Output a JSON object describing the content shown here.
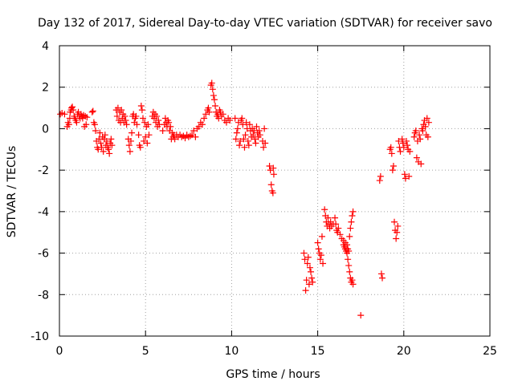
{
  "chart_data": {
    "type": "scatter",
    "title": "Day 132 of 2017, Sidereal Day-to-day VTEC variation (SDTVAR) for receiver savo",
    "xlabel": "GPS time / hours",
    "ylabel": "SDTVAR / TECUs",
    "xlim": [
      0,
      25
    ],
    "ylim": [
      -10,
      4
    ],
    "xticks": [
      "0",
      "5",
      "10",
      "15",
      "20",
      "25"
    ],
    "yticks": [
      "-10",
      "-8",
      "-6",
      "-4",
      "-2",
      "0",
      "2",
      "4"
    ],
    "grid": true,
    "marker": "+",
    "colors": {
      "marker": "#ff0000",
      "axes": "#000000",
      "grid": "#a0a0a0"
    },
    "series": [
      {
        "name": "SDTVAR",
        "points": [
          [
            0.05,
            0.7
          ],
          [
            0.15,
            0.75
          ],
          [
            0.3,
            0.7
          ],
          [
            0.45,
            0.1
          ],
          [
            0.5,
            0.3
          ],
          [
            0.55,
            0.2
          ],
          [
            0.6,
            0.5
          ],
          [
            0.62,
            0.8
          ],
          [
            0.68,
            0.9
          ],
          [
            0.7,
            1.0
          ],
          [
            0.75,
            1.05
          ],
          [
            0.8,
            0.9
          ],
          [
            0.85,
            0.6
          ],
          [
            0.9,
            0.5
          ],
          [
            0.95,
            0.4
          ],
          [
            1.0,
            0.3
          ],
          [
            1.05,
            0.7
          ],
          [
            1.1,
            0.8
          ],
          [
            1.15,
            0.6
          ],
          [
            1.2,
            0.5
          ],
          [
            1.25,
            0.7
          ],
          [
            1.3,
            0.6
          ],
          [
            1.35,
            0.5
          ],
          [
            1.4,
            0.65
          ],
          [
            1.45,
            0.1
          ],
          [
            1.5,
            0.6
          ],
          [
            1.55,
            0.2
          ],
          [
            1.6,
            0.55
          ],
          [
            1.9,
            0.8
          ],
          [
            1.95,
            0.85
          ],
          [
            2.0,
            0.3
          ],
          [
            2.05,
            0.2
          ],
          [
            2.1,
            -0.1
          ],
          [
            2.15,
            -0.6
          ],
          [
            2.2,
            -0.9
          ],
          [
            2.25,
            -1.0
          ],
          [
            2.3,
            -0.5
          ],
          [
            2.35,
            -0.2
          ],
          [
            2.4,
            -0.7
          ],
          [
            2.45,
            -0.9
          ],
          [
            2.5,
            -0.4
          ],
          [
            2.55,
            -1.1
          ],
          [
            2.6,
            -0.5
          ],
          [
            2.65,
            -0.3
          ],
          [
            2.7,
            -0.8
          ],
          [
            2.75,
            -0.6
          ],
          [
            2.8,
            -0.9
          ],
          [
            2.85,
            -1.0
          ],
          [
            2.9,
            -1.2
          ],
          [
            2.95,
            -0.7
          ],
          [
            3.0,
            -0.5
          ],
          [
            3.05,
            -0.8
          ],
          [
            3.3,
            0.9
          ],
          [
            3.35,
            0.6
          ],
          [
            3.4,
            1.0
          ],
          [
            3.45,
            0.4
          ],
          [
            3.5,
            0.8
          ],
          [
            3.55,
            0.3
          ],
          [
            3.6,
            0.9
          ],
          [
            3.65,
            0.5
          ],
          [
            3.7,
            0.7
          ],
          [
            3.75,
            0.3
          ],
          [
            3.8,
            0.6
          ],
          [
            3.85,
            0.4
          ],
          [
            3.9,
            0.2
          ],
          [
            4.0,
            -0.5
          ],
          [
            4.05,
            -0.8
          ],
          [
            4.1,
            -1.1
          ],
          [
            4.15,
            -0.6
          ],
          [
            4.2,
            -0.2
          ],
          [
            4.25,
            0.6
          ],
          [
            4.3,
            0.7
          ],
          [
            4.35,
            0.3
          ],
          [
            4.4,
            0.5
          ],
          [
            4.45,
            0.6
          ],
          [
            4.5,
            0.2
          ],
          [
            4.6,
            -0.3
          ],
          [
            4.65,
            -0.8
          ],
          [
            4.7,
            -0.9
          ],
          [
            4.75,
            1.1
          ],
          [
            4.8,
            0.9
          ],
          [
            4.85,
            0.5
          ],
          [
            4.9,
            -0.6
          ],
          [
            4.95,
            0.3
          ],
          [
            5.0,
            -0.4
          ],
          [
            5.05,
            0.1
          ],
          [
            5.1,
            -0.7
          ],
          [
            5.15,
            0.2
          ],
          [
            5.2,
            -0.3
          ],
          [
            5.4,
            0.6
          ],
          [
            5.45,
            0.8
          ],
          [
            5.5,
            0.5
          ],
          [
            5.55,
            0.7
          ],
          [
            5.6,
            0.3
          ],
          [
            5.65,
            0.6
          ],
          [
            5.7,
            0.1
          ],
          [
            5.75,
            0.4
          ],
          [
            5.8,
            0.2
          ],
          [
            6.0,
            -0.1
          ],
          [
            6.1,
            0.2
          ],
          [
            6.15,
            0.5
          ],
          [
            6.2,
            0.3
          ],
          [
            6.25,
            0.1
          ],
          [
            6.3,
            0.4
          ],
          [
            6.35,
            0.3
          ],
          [
            6.4,
            -0.1
          ],
          [
            6.45,
            0.1
          ],
          [
            6.5,
            -0.5
          ],
          [
            6.55,
            -0.2
          ],
          [
            6.6,
            -0.4
          ],
          [
            6.65,
            -0.3
          ],
          [
            6.7,
            -0.5
          ],
          [
            6.8,
            -0.3
          ],
          [
            6.9,
            -0.4
          ],
          [
            7.0,
            -0.3
          ],
          [
            7.1,
            -0.4
          ],
          [
            7.2,
            -0.35
          ],
          [
            7.3,
            -0.45
          ],
          [
            7.4,
            -0.3
          ],
          [
            7.5,
            -0.4
          ],
          [
            7.6,
            -0.35
          ],
          [
            7.7,
            -0.3
          ],
          [
            7.8,
            -0.1
          ],
          [
            7.9,
            -0.4
          ],
          [
            8.0,
            0.0
          ],
          [
            8.1,
            0.1
          ],
          [
            8.2,
            0.3
          ],
          [
            8.3,
            0.2
          ],
          [
            8.4,
            0.5
          ],
          [
            8.5,
            0.7
          ],
          [
            8.6,
            0.9
          ],
          [
            8.65,
            1.0
          ],
          [
            8.7,
            0.8
          ],
          [
            8.8,
            2.1
          ],
          [
            8.85,
            2.2
          ],
          [
            8.9,
            1.9
          ],
          [
            8.95,
            1.6
          ],
          [
            9.0,
            1.4
          ],
          [
            9.05,
            1.1
          ],
          [
            9.1,
            0.8
          ],
          [
            9.15,
            0.6
          ],
          [
            9.2,
            0.7
          ],
          [
            9.25,
            0.5
          ],
          [
            9.3,
            0.9
          ],
          [
            9.35,
            0.8
          ],
          [
            9.4,
            0.6
          ],
          [
            9.5,
            0.7
          ],
          [
            9.6,
            0.4
          ],
          [
            9.7,
            0.3
          ],
          [
            9.8,
            0.5
          ],
          [
            9.9,
            0.4
          ],
          [
            10.2,
            0.5
          ],
          [
            10.25,
            -0.5
          ],
          [
            10.3,
            -0.2
          ],
          [
            10.35,
            0.0
          ],
          [
            10.4,
            0.3
          ],
          [
            10.45,
            -0.8
          ],
          [
            10.5,
            -0.6
          ],
          [
            10.55,
            0.4
          ],
          [
            10.6,
            0.5
          ],
          [
            10.65,
            0.2
          ],
          [
            10.7,
            -0.5
          ],
          [
            10.75,
            -0.9
          ],
          [
            10.8,
            -0.3
          ],
          [
            10.85,
            0.3
          ],
          [
            10.9,
            0.0
          ],
          [
            10.95,
            -0.6
          ],
          [
            11.0,
            -0.8
          ],
          [
            11.05,
            0.2
          ],
          [
            11.1,
            -0.1
          ],
          [
            11.15,
            -0.4
          ],
          [
            11.2,
            0.0
          ],
          [
            11.25,
            -0.3
          ],
          [
            11.3,
            -0.1
          ],
          [
            11.35,
            -0.5
          ],
          [
            11.4,
            -0.7
          ],
          [
            11.45,
            0.1
          ],
          [
            11.5,
            -0.2
          ],
          [
            11.55,
            -0.4
          ],
          [
            11.6,
            -0.1
          ],
          [
            11.65,
            -0.3
          ],
          [
            11.8,
            -0.6
          ],
          [
            11.85,
            -0.9
          ],
          [
            11.9,
            0.0
          ],
          [
            11.95,
            -0.7
          ],
          [
            12.2,
            -1.8
          ],
          [
            12.25,
            -2.0
          ],
          [
            12.3,
            -2.7
          ],
          [
            12.35,
            -3.0
          ],
          [
            12.4,
            -3.1
          ],
          [
            12.42,
            -1.9
          ],
          [
            12.45,
            -2.2
          ],
          [
            14.2,
            -6.0
          ],
          [
            14.25,
            -6.3
          ],
          [
            14.3,
            -7.8
          ],
          [
            14.35,
            -7.3
          ],
          [
            14.4,
            -6.5
          ],
          [
            14.45,
            -6.2
          ],
          [
            14.5,
            -7.5
          ],
          [
            14.55,
            -6.7
          ],
          [
            14.6,
            -6.9
          ],
          [
            14.65,
            -7.2
          ],
          [
            14.7,
            -7.4
          ],
          [
            15.0,
            -5.5
          ],
          [
            15.05,
            -5.8
          ],
          [
            15.1,
            -6.0
          ],
          [
            15.15,
            -6.3
          ],
          [
            15.2,
            -6.1
          ],
          [
            15.25,
            -5.2
          ],
          [
            15.3,
            -6.5
          ],
          [
            15.4,
            -3.9
          ],
          [
            15.45,
            -4.2
          ],
          [
            15.5,
            -4.5
          ],
          [
            15.55,
            -4.7
          ],
          [
            15.6,
            -4.3
          ],
          [
            15.65,
            -4.6
          ],
          [
            15.7,
            -4.8
          ],
          [
            15.75,
            -4.5
          ],
          [
            15.8,
            -4.7
          ],
          [
            15.9,
            -4.6
          ],
          [
            16.0,
            -4.3
          ],
          [
            16.05,
            -4.6
          ],
          [
            16.1,
            -4.9
          ],
          [
            16.15,
            -5.0
          ],
          [
            16.2,
            -4.8
          ],
          [
            16.3,
            -5.1
          ],
          [
            16.4,
            -5.3
          ],
          [
            16.5,
            -5.6
          ],
          [
            16.6,
            -5.8
          ],
          [
            16.7,
            -6.0
          ],
          [
            16.75,
            -6.3
          ],
          [
            16.8,
            -6.6
          ],
          [
            16.85,
            -6.9
          ],
          [
            16.9,
            -7.2
          ],
          [
            16.95,
            -7.4
          ],
          [
            17.0,
            -7.3
          ],
          [
            17.05,
            -7.5
          ],
          [
            16.5,
            -5.4
          ],
          [
            16.55,
            -5.7
          ],
          [
            16.6,
            -5.5
          ],
          [
            16.65,
            -5.9
          ],
          [
            16.7,
            -5.6
          ],
          [
            16.75,
            -5.8
          ],
          [
            16.8,
            -5.9
          ],
          [
            16.85,
            -5.2
          ],
          [
            16.9,
            -4.8
          ],
          [
            16.95,
            -4.5
          ],
          [
            17.0,
            -4.2
          ],
          [
            17.05,
            -4.0
          ],
          [
            17.5,
            -9.0
          ],
          [
            18.6,
            -2.5
          ],
          [
            18.65,
            -2.3
          ],
          [
            18.7,
            -7.0
          ],
          [
            18.75,
            -7.2
          ],
          [
            19.2,
            -1.0
          ],
          [
            19.25,
            -0.9
          ],
          [
            19.3,
            -1.2
          ],
          [
            19.35,
            -2.0
          ],
          [
            19.4,
            -1.8
          ],
          [
            19.45,
            -4.5
          ],
          [
            19.5,
            -4.9
          ],
          [
            19.55,
            -5.3
          ],
          [
            19.6,
            -5.0
          ],
          [
            19.65,
            -4.7
          ],
          [
            19.7,
            -0.6
          ],
          [
            19.75,
            -0.9
          ],
          [
            19.8,
            -1.1
          ],
          [
            19.9,
            -0.5
          ],
          [
            19.95,
            -0.7
          ],
          [
            20.0,
            -0.9
          ],
          [
            20.05,
            -2.2
          ],
          [
            20.1,
            -2.4
          ],
          [
            20.15,
            -0.6
          ],
          [
            20.2,
            -0.8
          ],
          [
            20.25,
            -1.0
          ],
          [
            20.3,
            -2.3
          ],
          [
            20.35,
            -1.1
          ],
          [
            20.6,
            -0.4
          ],
          [
            20.65,
            -0.2
          ],
          [
            20.7,
            -0.1
          ],
          [
            20.75,
            -1.4
          ],
          [
            20.8,
            -0.6
          ],
          [
            20.85,
            -1.6
          ],
          [
            20.9,
            -0.3
          ],
          [
            20.95,
            -0.5
          ],
          [
            21.0,
            -1.7
          ],
          [
            21.05,
            0.0
          ],
          [
            21.1,
            -0.1
          ],
          [
            21.15,
            0.2
          ],
          [
            21.2,
            0.4
          ],
          [
            21.25,
            0.1
          ],
          [
            21.3,
            -0.3
          ],
          [
            21.35,
            0.5
          ],
          [
            21.4,
            -0.4
          ],
          [
            21.45,
            0.3
          ]
        ]
      }
    ]
  }
}
